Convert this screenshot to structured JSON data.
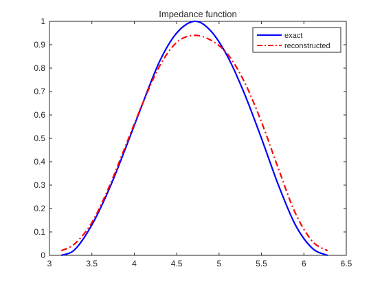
{
  "chart_data": {
    "type": "line",
    "title": "Impedance function",
    "xlabel": "",
    "ylabel": "",
    "xlim": [
      3,
      6.5
    ],
    "ylim": [
      0,
      1
    ],
    "x_ticks": [
      "3",
      "3.5",
      "4",
      "4.5",
      "5",
      "5.5",
      "6",
      "6.5"
    ],
    "y_ticks": [
      "0",
      "0.1",
      "0.2",
      "0.3",
      "0.4",
      "0.5",
      "0.6",
      "0.7",
      "0.8",
      "0.9",
      "1"
    ],
    "grid": false,
    "legend_position": "top-right",
    "series": [
      {
        "name": "exact",
        "color": "#0000ff",
        "style": "solid",
        "x": [
          3.14,
          3.3,
          3.5,
          3.7,
          3.9,
          4.1,
          4.3,
          4.5,
          4.71,
          4.9,
          5.1,
          5.3,
          5.5,
          5.7,
          5.9,
          6.1,
          6.28
        ],
        "y": [
          0.0,
          0.025,
          0.13,
          0.28,
          0.46,
          0.65,
          0.83,
          0.95,
          1.0,
          0.96,
          0.85,
          0.69,
          0.5,
          0.3,
          0.13,
          0.03,
          0.0
        ]
      },
      {
        "name": "reconstructed",
        "color": "#ff0000",
        "style": "dashdot",
        "x": [
          3.14,
          3.3,
          3.5,
          3.7,
          3.9,
          4.1,
          4.3,
          4.5,
          4.7,
          4.9,
          5.1,
          5.3,
          5.5,
          5.7,
          5.9,
          6.1,
          6.28
        ],
        "y": [
          0.02,
          0.05,
          0.14,
          0.29,
          0.47,
          0.65,
          0.81,
          0.91,
          0.94,
          0.92,
          0.86,
          0.74,
          0.57,
          0.37,
          0.18,
          0.06,
          0.02
        ]
      }
    ]
  }
}
